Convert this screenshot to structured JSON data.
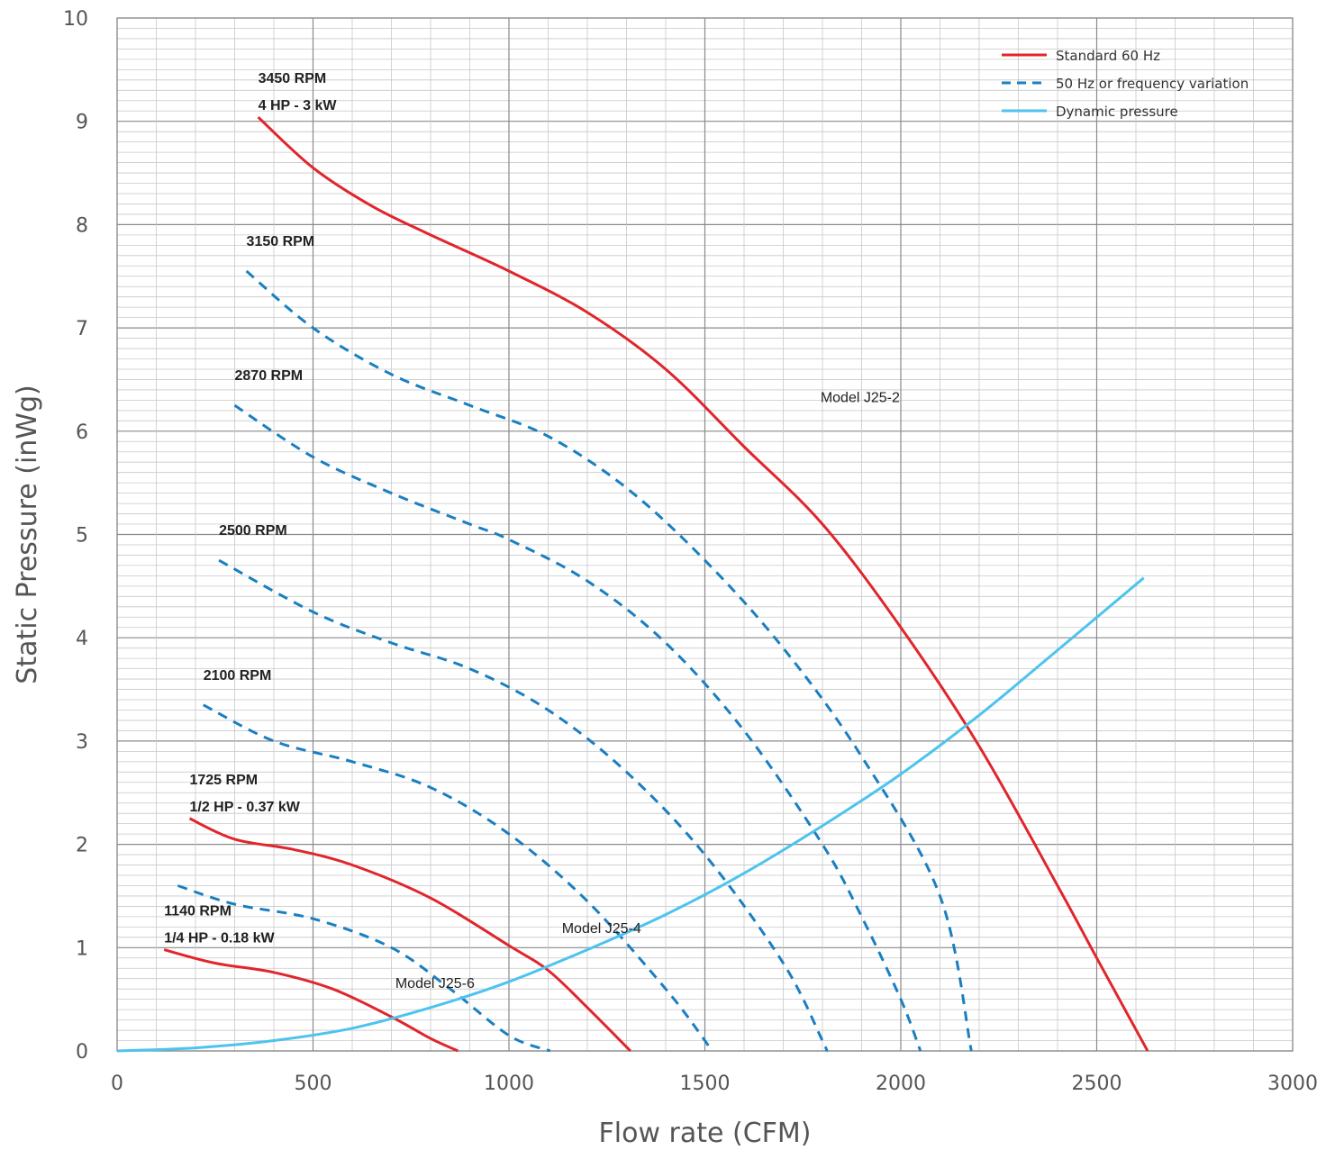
{
  "chart_data": {
    "type": "line",
    "xlabel": "Flow rate (CFM)",
    "ylabel": "Static Pressure (inWg)",
    "xlim": [
      0,
      3000
    ],
    "ylim": [
      0,
      10
    ],
    "x_ticks": [
      "0",
      "500",
      "1000",
      "1500",
      "2000",
      "2500",
      "3000"
    ],
    "y_ticks": [
      "0",
      "1",
      "2",
      "3",
      "4",
      "5",
      "6",
      "7",
      "8",
      "9",
      "10"
    ],
    "grid": true,
    "legend_position": "top-right",
    "colors": {
      "standard": "#e0262c",
      "variation": "#1a7fc1",
      "dynamic": "#4dc3ee",
      "major_grid": "#8a8a8a",
      "minor_grid": "#c8c8c8"
    },
    "legend": [
      {
        "label": "Standard 60 Hz",
        "style": "solid",
        "color": "#e0262c"
      },
      {
        "label": "50 Hz or frequency variation",
        "style": "dashed",
        "color": "#1a7fc1"
      },
      {
        "label": "Dynamic pressure",
        "style": "solid",
        "color": "#4dc3ee"
      }
    ],
    "series": [
      {
        "kind": "standard",
        "label_lines": [
          "3450 RPM",
          "4 HP - 3 kW"
        ],
        "points": [
          [
            360,
            9.04
          ],
          [
            500,
            8.55
          ],
          [
            650,
            8.18
          ],
          [
            800,
            7.9
          ],
          [
            1000,
            7.55
          ],
          [
            1200,
            7.15
          ],
          [
            1400,
            6.6
          ],
          [
            1600,
            5.85
          ],
          [
            1800,
            5.1
          ],
          [
            2000,
            4.1
          ],
          [
            2200,
            2.95
          ],
          [
            2400,
            1.6
          ],
          [
            2500,
            0.9
          ],
          [
            2630,
            0
          ]
        ]
      },
      {
        "kind": "variation",
        "label_lines": [
          "3150 RPM"
        ],
        "points": [
          [
            330,
            7.55
          ],
          [
            500,
            7.0
          ],
          [
            700,
            6.55
          ],
          [
            900,
            6.25
          ],
          [
            1100,
            5.95
          ],
          [
            1300,
            5.45
          ],
          [
            1500,
            4.75
          ],
          [
            1700,
            3.9
          ],
          [
            1900,
            2.85
          ],
          [
            2100,
            1.5
          ],
          [
            2180,
            0
          ]
        ]
      },
      {
        "kind": "variation",
        "label_lines": [
          "2870 RPM"
        ],
        "points": [
          [
            300,
            6.25
          ],
          [
            500,
            5.75
          ],
          [
            700,
            5.4
          ],
          [
            900,
            5.1
          ],
          [
            1000,
            4.95
          ],
          [
            1200,
            4.55
          ],
          [
            1400,
            3.95
          ],
          [
            1600,
            3.1
          ],
          [
            1800,
            2.0
          ],
          [
            1900,
            1.3
          ],
          [
            2000,
            0.5
          ],
          [
            2050,
            0
          ]
        ]
      },
      {
        "kind": "variation",
        "label_lines": [
          "2500 RPM"
        ],
        "points": [
          [
            260,
            4.75
          ],
          [
            500,
            4.25
          ],
          [
            700,
            3.95
          ],
          [
            900,
            3.7
          ],
          [
            1100,
            3.3
          ],
          [
            1300,
            2.7
          ],
          [
            1500,
            1.9
          ],
          [
            1700,
            0.85
          ],
          [
            1800,
            0.1
          ],
          [
            1810,
            0
          ]
        ]
      },
      {
        "kind": "variation",
        "label_lines": [
          "2100 RPM"
        ],
        "points": [
          [
            220,
            3.35
          ],
          [
            400,
            3.0
          ],
          [
            600,
            2.8
          ],
          [
            800,
            2.55
          ],
          [
            1000,
            2.1
          ],
          [
            1200,
            1.45
          ],
          [
            1400,
            0.6
          ],
          [
            1500,
            0.1
          ],
          [
            1515,
            0
          ]
        ]
      },
      {
        "kind": "standard",
        "label_lines": [
          "1725 RPM",
          "1/2 HP - 0.37 kW"
        ],
        "points": [
          [
            185,
            2.25
          ],
          [
            300,
            2.05
          ],
          [
            450,
            1.95
          ],
          [
            600,
            1.8
          ],
          [
            800,
            1.48
          ],
          [
            1000,
            1.02
          ],
          [
            1100,
            0.78
          ],
          [
            1200,
            0.42
          ],
          [
            1310,
            0
          ]
        ]
      },
      {
        "kind": "variation",
        "label_lines": [],
        "points": [
          [
            155,
            1.6
          ],
          [
            300,
            1.42
          ],
          [
            500,
            1.28
          ],
          [
            700,
            1.0
          ],
          [
            850,
            0.6
          ],
          [
            1000,
            0.15
          ],
          [
            1105,
            0
          ]
        ]
      },
      {
        "kind": "standard",
        "label_lines": [
          "1140 RPM",
          "1/4 HP - 0.18 kW"
        ],
        "points": [
          [
            120,
            0.98
          ],
          [
            250,
            0.85
          ],
          [
            400,
            0.76
          ],
          [
            550,
            0.6
          ],
          [
            700,
            0.33
          ],
          [
            800,
            0.12
          ],
          [
            870,
            0
          ]
        ]
      },
      {
        "kind": "dynamic",
        "label_lines": [],
        "points": [
          [
            0,
            0
          ],
          [
            200,
            0.03
          ],
          [
            400,
            0.1
          ],
          [
            600,
            0.22
          ],
          [
            800,
            0.42
          ],
          [
            1000,
            0.67
          ],
          [
            1200,
            0.98
          ],
          [
            1400,
            1.32
          ],
          [
            1600,
            1.72
          ],
          [
            1800,
            2.18
          ],
          [
            2000,
            2.68
          ],
          [
            2200,
            3.25
          ],
          [
            2400,
            3.88
          ],
          [
            2620,
            4.58
          ]
        ]
      }
    ],
    "annotations": [
      {
        "text": "Model J25-2",
        "x": 1795,
        "y": 6.28
      },
      {
        "text": "Model J25-4",
        "x": 1135,
        "y": 1.14
      },
      {
        "text": "Model J25-6",
        "x": 710,
        "y": 0.61
      }
    ]
  }
}
